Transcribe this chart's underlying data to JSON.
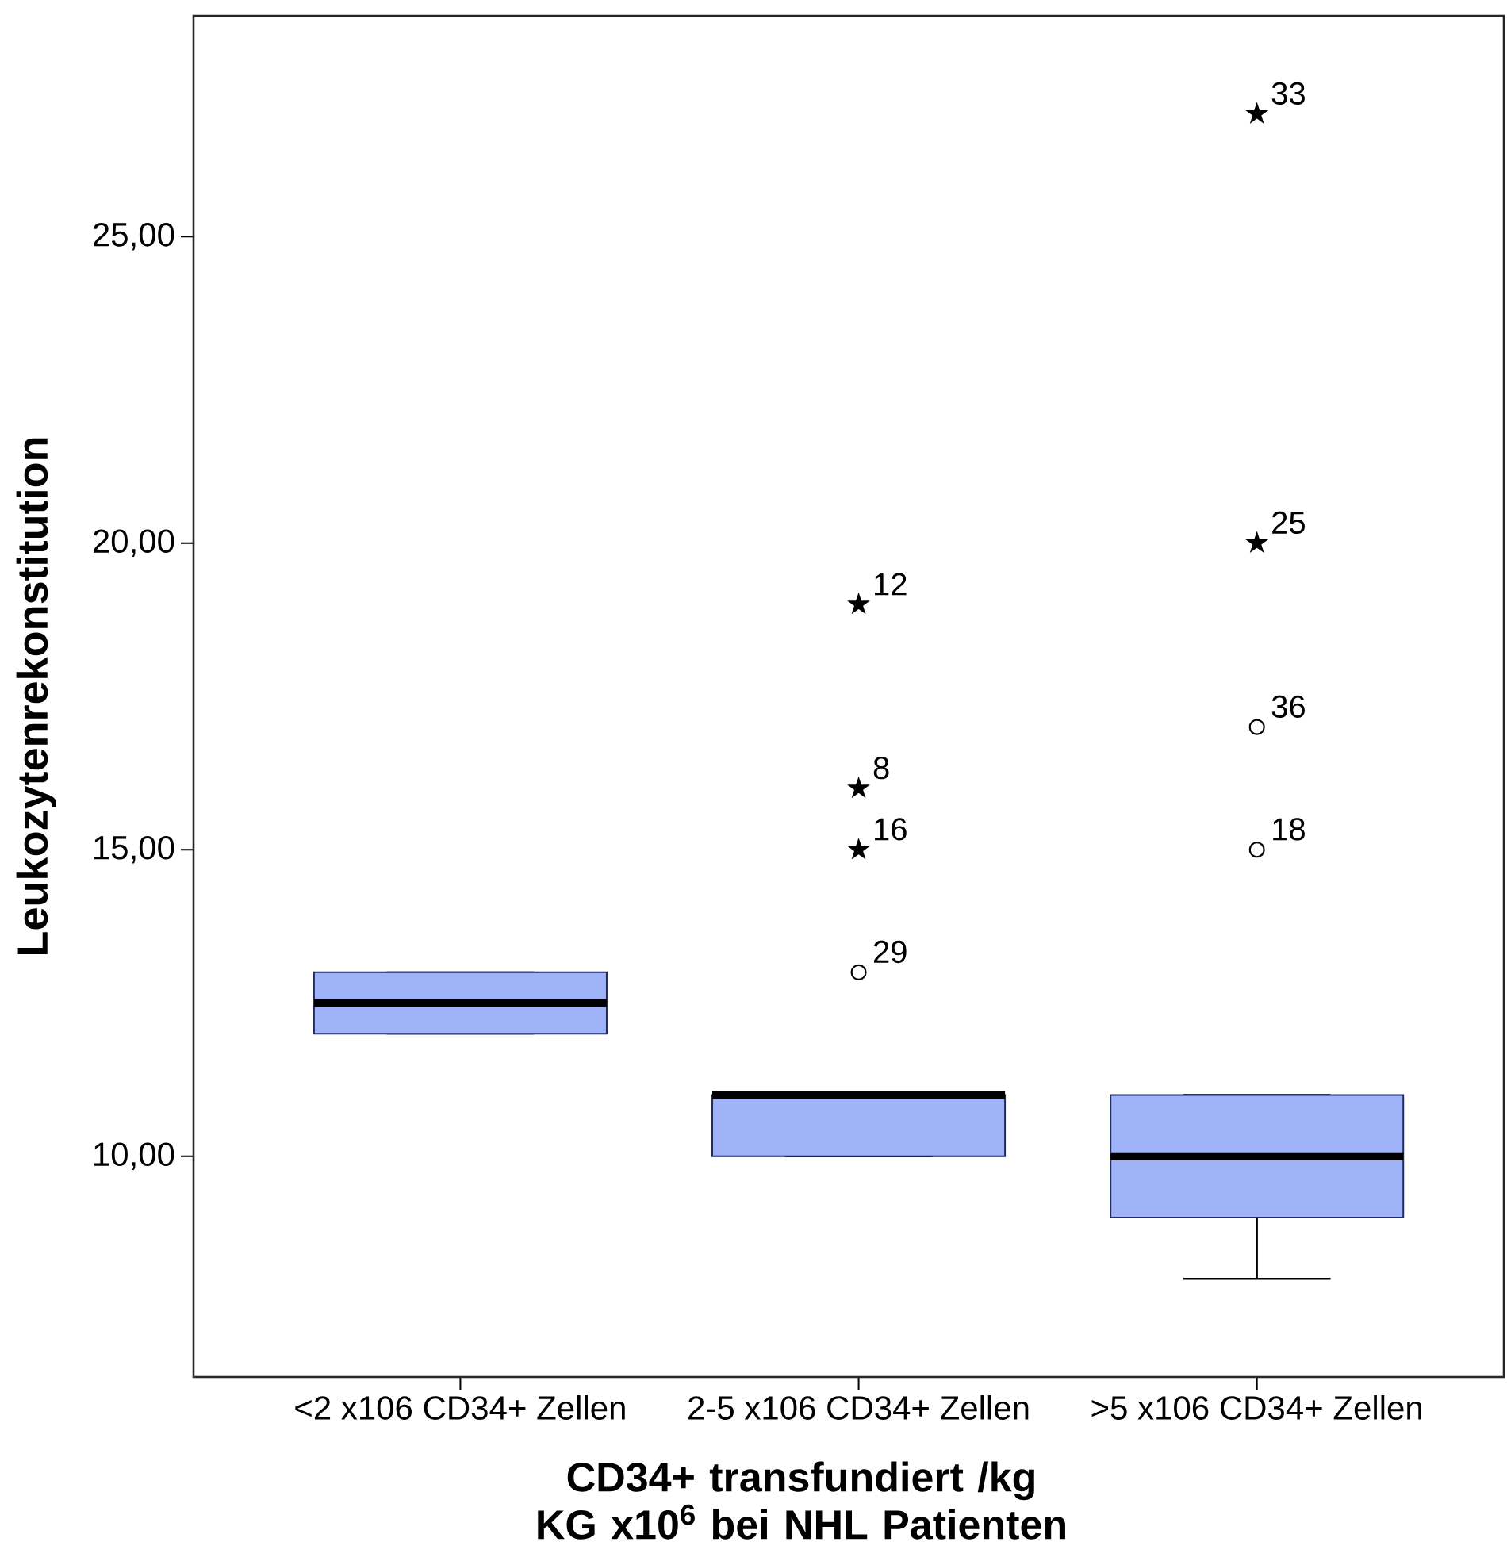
{
  "chart_data": {
    "type": "box",
    "ylabel": "Leukozytenrekonstitution",
    "xlabel": "CD34+ transfundiert /kg KG x10$^{6}$ bei NHL Patienten",
    "categories": [
      "<2 x106 CD34+ Zellen",
      "2-5 x106 CD34+ Zellen",
      ">5 x106 CD34+ Zellen"
    ],
    "color": "#9fb3f9",
    "boxes": [
      {
        "low": 12,
        "q1": 12,
        "median": 12.5,
        "q3": 13,
        "high": 13
      },
      {
        "low": 10,
        "q1": 10,
        "median": 11,
        "q3": 11,
        "high": 11
      },
      {
        "low": 8,
        "q1": 9,
        "median": 10,
        "q3": 11,
        "high": 11
      }
    ],
    "series": [
      {
        "type": "scatter",
        "marker": "circle",
        "color": "#000000",
        "x": [
          "2-5 x106 CD34+ Zellen",
          ">5 x106 CD34+ Zellen",
          ">5 x106 CD34+ Zellen"
        ],
        "values": [
          13,
          15,
          17
        ]
      },
      {
        "type": "scatter",
        "marker": "star",
        "color": "#000000",
        "x": [
          "2-5 x106 CD34+ Zellen",
          "2-5 x106 CD34+ Zellen",
          "2-5 x106 CD34+ Zellen",
          ">5 x106 CD34+ Zellen",
          ">5 x106 CD34+ Zellen"
        ],
        "values": [
          15,
          16,
          19,
          20,
          27
        ]
      }
    ],
    "annotations": [
      {
        "text": "29",
        "x": "2-5 x106 CD34+ Zellen",
        "y": 13
      },
      {
        "text": "16",
        "x": "2-5 x106 CD34+ Zellen",
        "y": 15
      },
      {
        "text": "8",
        "x": "2-5 x106 CD34+ Zellen",
        "y": 16
      },
      {
        "text": "12",
        "x": "2-5 x106 CD34+ Zellen",
        "y": 19
      },
      {
        "text": "18",
        "x": ">5 x106 CD34+ Zellen",
        "y": 15
      },
      {
        "text": "36",
        "x": ">5 x106 CD34+ Zellen",
        "y": 17
      },
      {
        "text": "25",
        "x": ">5 x106 CD34+ Zellen",
        "y": 20
      },
      {
        "text": "33",
        "x": ">5 x106 CD34+ Zellen",
        "y": 27
      }
    ],
    "ylim": [
      6.4,
      28.6
    ],
    "yticks": [
      {
        "value": 10,
        "label": "10,00"
      },
      {
        "value": 15,
        "label": "15,00"
      },
      {
        "value": 20,
        "label": "20,00"
      },
      {
        "value": 25,
        "label": "25,00"
      }
    ],
    "grid": false
  }
}
